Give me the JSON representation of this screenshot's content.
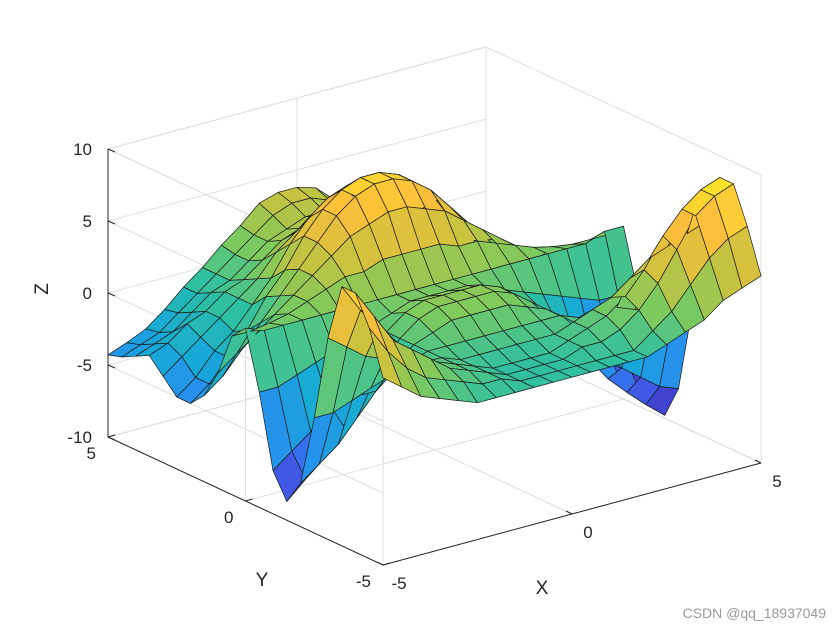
{
  "chart_data": {
    "type": "surface",
    "title": "",
    "xlabel": "X",
    "ylabel": "Y",
    "zlabel": "Z",
    "xlim": [
      -5,
      5
    ],
    "ylim": [
      -5,
      5
    ],
    "zlim": [
      -10,
      10
    ],
    "x_ticks": [
      -5,
      0,
      5
    ],
    "y_ticks": [
      -5,
      0,
      5
    ],
    "z_ticks": [
      -10,
      -5,
      0,
      5,
      10
    ],
    "grid": true,
    "colormap": [
      "#3e26a8",
      "#4353e3",
      "#2f84f7",
      "#16a9d8",
      "#2cbfa4",
      "#7dca5e",
      "#cfc23d",
      "#fcbe3c",
      "#f9e627"
    ],
    "z_values": [
      [
        3.0,
        6.0,
        8.0,
        8.0,
        4.0,
        -2.0,
        -7.0,
        -8.7,
        -7.0,
        -2.0,
        2.0,
        1.0,
        -2.0,
        -4.0,
        -5.0,
        -5.0,
        -4.0,
        -3.0,
        -3.5,
        -4.0,
        -4.3
      ],
      [
        2.0,
        4.0,
        6.0,
        6.0,
        3.0,
        -2.0,
        -6.0,
        -7.5,
        -6.0,
        -2.0,
        1.5,
        1.0,
        -1.0,
        -3.0,
        -4.0,
        -4.0,
        -3.0,
        -2.5,
        -3.0,
        -3.5,
        -3.8
      ],
      [
        1.0,
        2.5,
        4.0,
        4.5,
        2.0,
        -1.5,
        -5.0,
        -6.2,
        -5.0,
        -1.5,
        1.5,
        1.2,
        0.0,
        -1.5,
        -2.5,
        -2.5,
        -2.0,
        -1.5,
        -2.5,
        -3.0,
        -3.2
      ],
      [
        0.5,
        1.5,
        3.0,
        3.0,
        1.5,
        -1.0,
        -3.5,
        -4.5,
        -3.5,
        -1.0,
        1.5,
        1.5,
        1.0,
        0.0,
        -1.0,
        -1.5,
        -1.0,
        -1.0,
        -1.5,
        -2.0,
        -2.2
      ],
      [
        0.0,
        1.0,
        2.0,
        2.0,
        1.0,
        -0.5,
        -2.0,
        -2.7,
        -2.0,
        -0.5,
        1.5,
        2.0,
        2.0,
        1.5,
        1.0,
        0.0,
        0.0,
        0.0,
        -0.5,
        -1.0,
        -1.0
      ],
      [
        -0.5,
        0.5,
        1.0,
        1.0,
        0.5,
        0.0,
        -0.5,
        -1.0,
        -0.5,
        0.0,
        1.5,
        2.5,
        3.0,
        3.0,
        2.5,
        1.5,
        1.0,
        0.5,
        0.0,
        0.0,
        0.0
      ],
      [
        -0.5,
        0.0,
        0.5,
        0.5,
        0.5,
        0.5,
        0.5,
        0.5,
        0.5,
        0.5,
        1.5,
        3.0,
        4.0,
        4.5,
        4.5,
        3.5,
        2.5,
        1.5,
        1.0,
        1.0,
        1.2
      ],
      [
        -0.5,
        0.0,
        0.0,
        0.0,
        0.0,
        0.5,
        1.0,
        1.5,
        1.5,
        1.0,
        1.5,
        3.0,
        5.0,
        6.0,
        6.0,
        5.0,
        3.5,
        2.5,
        2.0,
        2.0,
        2.2
      ],
      [
        -0.5,
        -0.5,
        -0.5,
        -0.5,
        0.0,
        0.5,
        1.5,
        2.0,
        2.0,
        1.5,
        1.5,
        3.5,
        5.5,
        7.0,
        7.0,
        6.0,
        4.5,
        3.0,
        2.5,
        3.0,
        3.4
      ],
      [
        -0.5,
        -0.5,
        -0.5,
        -0.5,
        0.0,
        0.5,
        1.5,
        2.0,
        2.0,
        1.5,
        1.5,
        3.5,
        6.0,
        7.5,
        7.5,
        6.5,
        5.0,
        3.5,
        3.0,
        3.5,
        3.8
      ],
      [
        -0.5,
        -0.5,
        -0.5,
        -0.5,
        0.0,
        0.5,
        1.5,
        2.0,
        2.0,
        1.5,
        1.5,
        3.5,
        6.0,
        7.5,
        7.5,
        6.5,
        5.0,
        3.5,
        3.0,
        3.5,
        3.8
      ],
      [
        -0.5,
        -0.5,
        -0.5,
        -0.5,
        0.0,
        0.5,
        1.5,
        2.0,
        2.0,
        1.5,
        1.5,
        3.5,
        5.5,
        7.0,
        7.0,
        6.0,
        4.5,
        3.0,
        2.5,
        3.0,
        3.4
      ],
      [
        -0.5,
        -0.5,
        0.0,
        0.0,
        0.0,
        0.5,
        1.0,
        1.5,
        1.5,
        1.0,
        1.5,
        3.0,
        5.0,
        6.0,
        6.0,
        5.0,
        3.5,
        2.5,
        2.0,
        2.0,
        2.2
      ],
      [
        -0.5,
        -0.5,
        0.0,
        0.5,
        0.5,
        0.5,
        0.5,
        0.5,
        0.5,
        0.5,
        1.5,
        3.0,
        4.0,
        4.5,
        4.5,
        3.5,
        2.5,
        1.5,
        1.0,
        1.0,
        1.2
      ],
      [
        -0.5,
        -0.5,
        0.5,
        1.0,
        1.0,
        0.0,
        -0.5,
        -1.0,
        -0.5,
        0.0,
        1.5,
        2.5,
        3.0,
        3.0,
        2.5,
        1.5,
        1.0,
        0.5,
        0.0,
        0.0,
        0.0
      ],
      [
        0.0,
        0.5,
        1.5,
        2.0,
        1.5,
        0.0,
        -2.0,
        -2.7,
        -2.0,
        -0.5,
        1.5,
        2.0,
        2.0,
        1.5,
        1.0,
        0.0,
        0.0,
        0.0,
        -0.5,
        -1.0,
        -1.0
      ],
      [
        0.5,
        1.5,
        3.0,
        3.5,
        2.5,
        0.0,
        -3.5,
        -4.5,
        -3.5,
        -1.0,
        1.5,
        1.5,
        1.0,
        0.0,
        -1.0,
        -1.5,
        -1.0,
        -1.0,
        -1.5,
        -2.0,
        -2.2
      ],
      [
        1.0,
        3.0,
        5.0,
        5.5,
        3.5,
        -0.5,
        -5.0,
        -6.2,
        -5.0,
        -1.5,
        1.5,
        1.2,
        0.0,
        -1.5,
        -2.5,
        -2.5,
        -2.0,
        -1.5,
        -2.5,
        -3.0,
        -3.2
      ],
      [
        2.0,
        4.5,
        7.0,
        7.0,
        4.0,
        -1.0,
        -6.0,
        -7.5,
        -6.0,
        -2.0,
        1.5,
        1.0,
        -1.0,
        -3.0,
        -4.0,
        -4.0,
        -3.0,
        -2.5,
        -3.0,
        -3.5,
        -3.8
      ],
      [
        2.5,
        5.5,
        8.0,
        8.0,
        4.5,
        -1.5,
        -7.0,
        -8.7,
        -7.0,
        -2.0,
        2.0,
        1.0,
        -2.0,
        -4.0,
        -5.0,
        -5.0,
        -4.0,
        -3.0,
        -3.5,
        -4.0,
        -4.3
      ],
      [
        3.0,
        6.0,
        8.5,
        8.5,
        5.0,
        -1.5,
        -7.5,
        -9.8,
        -7.5,
        -2.0,
        2.0,
        1.0,
        -2.0,
        -4.0,
        -5.0,
        -5.0,
        -4.0,
        -3.0,
        -3.5,
        -4.0,
        -4.3
      ]
    ]
  },
  "watermark": "CSDN @qq_18937049"
}
